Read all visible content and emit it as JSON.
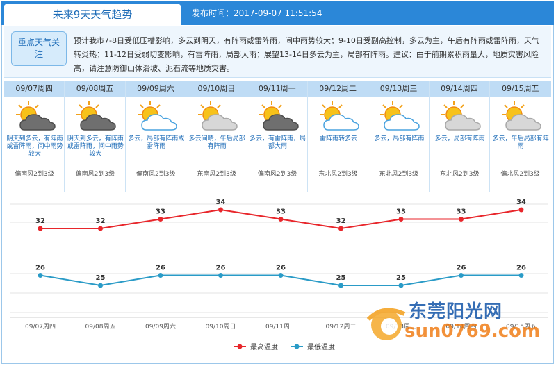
{
  "header": {
    "title": "未来9天天气趋势",
    "published": "发布时间：2017-09-07 11:51:54"
  },
  "summary": {
    "badge": "重点天气关注",
    "text": "预计我市7-8日受低压槽影响，多云到阴天，有阵雨或雷阵雨，间中雨势较大；9-10日受副高控制，多云为主，午后有阵雨或雷阵雨，天气转炎热；11-12日受弱切变影响，有雷阵雨，局部大雨；展望13-14日多云为主，局部有阵雨。建议：由于前期累积雨量大，地质灾害风险高，请注意防御山体滑坡、泥石流等地质灾害。"
  },
  "days": [
    {
      "date": "09/07周四",
      "desc": "阴天到多云，有阵雨或雷阵雨，间中雨势较大",
      "wind": "偏南风2到3级",
      "icon": "sun-dark-cloud-icon"
    },
    {
      "date": "09/08周五",
      "desc": "阴天到多云，有阵雨或雷阵雨，间中雨势较大",
      "wind": "偏南风2到3级",
      "icon": "sun-dark-cloud-icon"
    },
    {
      "date": "09/09周六",
      "desc": "多云，局部有阵雨或雷阵雨",
      "wind": "偏南风2到3级",
      "icon": "sun-white-cloud-icon"
    },
    {
      "date": "09/10周日",
      "desc": "多云间晴，午后局部有阵雨",
      "wind": "东南风2到3级",
      "icon": "sun-grey-cloud-icon"
    },
    {
      "date": "09/11周一",
      "desc": "多云，有雷阵雨，局部大雨",
      "wind": "偏南风2到3级",
      "icon": "sun-dark-cloud-icon"
    },
    {
      "date": "09/12周二",
      "desc": "雷阵雨转多云",
      "wind": "东北风2到3级",
      "icon": "sun-white-cloud-icon"
    },
    {
      "date": "09/13周三",
      "desc": "多云，局部有阵雨",
      "wind": "东北风2到3级",
      "icon": "sun-white-cloud-icon"
    },
    {
      "date": "09/14周四",
      "desc": "多云，局部有阵雨",
      "wind": "东北风2到3级",
      "icon": "sun-grey-cloud-icon"
    },
    {
      "date": "09/15周五",
      "desc": "多云，午后局部有阵雨",
      "wind": "偏北风2到3级",
      "icon": "sun-grey-cloud-icon"
    }
  ],
  "chart_data": {
    "type": "line",
    "categories": [
      "09/07周四",
      "09/08周五",
      "09/09周六",
      "09/10周日",
      "09/11周一",
      "09/12周二",
      "09/13周三",
      "09/14周四",
      "09/15周五"
    ],
    "series": [
      {
        "name": "最高温度",
        "values": [
          32,
          32,
          33,
          34,
          33,
          32,
          33,
          33,
          34
        ],
        "color": "#e8262b"
      },
      {
        "name": "最低温度",
        "values": [
          26,
          25,
          26,
          26,
          26,
          25,
          25,
          26,
          26
        ],
        "color": "#2a9bc7"
      }
    ],
    "legend_position": "bottom-center",
    "grid": true
  },
  "watermark": {
    "brand": "东莞阳光网",
    "url": "sun0769.com"
  }
}
